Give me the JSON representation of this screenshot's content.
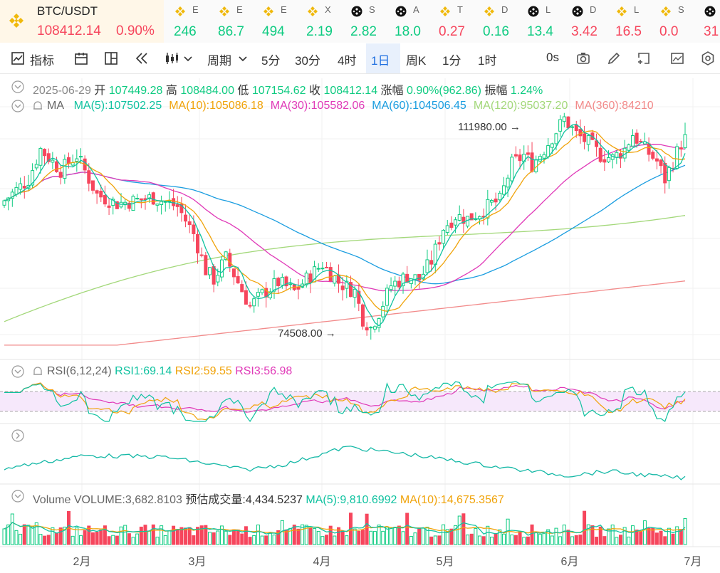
{
  "pair": {
    "name": "BTC/USDT",
    "price": "108412.14",
    "change": "0.90%"
  },
  "tickers": [
    {
      "nm": "E",
      "val": "246",
      "color": "#0ecb81",
      "icon": "bnb-icon"
    },
    {
      "nm": "E",
      "val": "86.7",
      "color": "#0ecb81",
      "icon": "bnb-icon"
    },
    {
      "nm": "E",
      "val": "494",
      "color": "#0ecb81",
      "icon": "bnb-icon"
    },
    {
      "nm": "X",
      "val": "2.19",
      "color": "#0ecb81",
      "icon": "bnb-icon"
    },
    {
      "nm": "S",
      "val": "2.82",
      "color": "#0ecb81",
      "icon": "binance-icon"
    },
    {
      "nm": "A",
      "val": "18.0",
      "color": "#0ecb81",
      "icon": "binance-icon"
    },
    {
      "nm": "T",
      "val": "0.27",
      "color": "#f6465d",
      "icon": "bnb-icon"
    },
    {
      "nm": "D",
      "val": "0.16",
      "color": "#0ecb81",
      "icon": "bnb-icon"
    },
    {
      "nm": "L",
      "val": "13.4",
      "color": "#0ecb81",
      "icon": "binance-icon"
    },
    {
      "nm": "D",
      "val": "3.42",
      "color": "#f6465d",
      "icon": "binance-icon"
    },
    {
      "nm": "L",
      "val": "16.5",
      "color": "#f6465d",
      "icon": "bnb-icon"
    },
    {
      "nm": "S",
      "val": "0.0",
      "color": "#f6465d",
      "icon": "bnb-icon"
    },
    {
      "nm": "",
      "val": "31",
      "color": "#f6465d",
      "icon": "binance-icon"
    }
  ],
  "toolbar": {
    "indicator": "指标",
    "period": "周期",
    "intervals": [
      "5分",
      "30分",
      "4时",
      "1日",
      "周K",
      "1分",
      "1时"
    ],
    "active_interval": "1日",
    "countdown": "0s"
  },
  "ohlc": {
    "date": "2025-06-29",
    "open_label": "开",
    "open": "107449.28",
    "high_label": "高",
    "high": "108484.00",
    "low_label": "低",
    "low": "107154.62",
    "close_label": "收",
    "close": "108412.14",
    "chg_label": "涨幅",
    "chg": "0.90%(962.86)",
    "amp_label": "振幅",
    "amp": "1.24%"
  },
  "ma_legend": {
    "title": "MA",
    "items": [
      {
        "label": "MA(5):107502.25",
        "color": "#10c2a0"
      },
      {
        "label": "MA(10):105086.18",
        "color": "#f0a30a"
      },
      {
        "label": "MA(30):105582.06",
        "color": "#e03ab8"
      },
      {
        "label": "MA(60):104506.45",
        "color": "#1a9de0"
      },
      {
        "label": "MA(120):95037.20",
        "color": "#a3d87a"
      },
      {
        "label": "MA(360):84210",
        "color": "#f28a8a"
      }
    ]
  },
  "annotations": {
    "high": "111980.00",
    "low": "74508.00"
  },
  "rsi_legend": {
    "title": "RSI(6,12,24)",
    "rsi1": "RSI1:69.14",
    "rsi2": "RSI2:59.55",
    "rsi3": "RSI3:56.98"
  },
  "volume_legend": {
    "title": "Volume",
    "volume": "VOLUME:3,682.8103",
    "est": "预估成交量:4,434.5237",
    "ma5": "MA(5):9,810.6992",
    "ma10": "MA(10):14,675.3567"
  },
  "months": [
    "2月",
    "3月",
    "4月",
    "5月",
    "6月",
    "7月"
  ],
  "colors": {
    "up": "#0ecb81",
    "down": "#f6465d",
    "accent": "#1e6fe0"
  },
  "chart_data": {
    "type": "candlestick",
    "pair": "BTC/USDT",
    "interval": "1日",
    "x_range": [
      "2025-01-11",
      "2025-06-29"
    ],
    "price_range": [
      73000,
      113000
    ],
    "max_high": {
      "date": "2025-05-22",
      "value": 111980.0
    },
    "min_low": {
      "date": "2025-04-07",
      "value": 74508.0
    },
    "candle_samples": [
      {
        "date": "2025-01-20",
        "close": 102000
      },
      {
        "date": "2025-02-20",
        "close": 97000
      },
      {
        "date": "2025-03-10",
        "close": 80000
      },
      {
        "date": "2025-04-08",
        "close": 76500
      },
      {
        "date": "2025-05-01",
        "close": 96000
      },
      {
        "date": "2025-05-22",
        "close": 111000
      },
      {
        "date": "2025-06-22",
        "close": 101000
      },
      {
        "date": "2025-06-29",
        "close": 108412.14
      }
    ],
    "ma": [
      {
        "name": "MA(5)",
        "last": 107502.25
      },
      {
        "name": "MA(10)",
        "last": 105086.18
      },
      {
        "name": "MA(30)",
        "last": 105582.06
      },
      {
        "name": "MA(60)",
        "last": 104506.45
      },
      {
        "name": "MA(120)",
        "last": 95037.2
      },
      {
        "name": "MA(360)",
        "last": 84210
      }
    ],
    "rsi": {
      "rsi1": 69.14,
      "rsi2": 59.55,
      "rsi3": 56.98
    },
    "volume": {
      "last": 3682.8103,
      "estimate": 4434.5237,
      "ma5": 9810.6992,
      "ma10": 14675.3567
    }
  }
}
